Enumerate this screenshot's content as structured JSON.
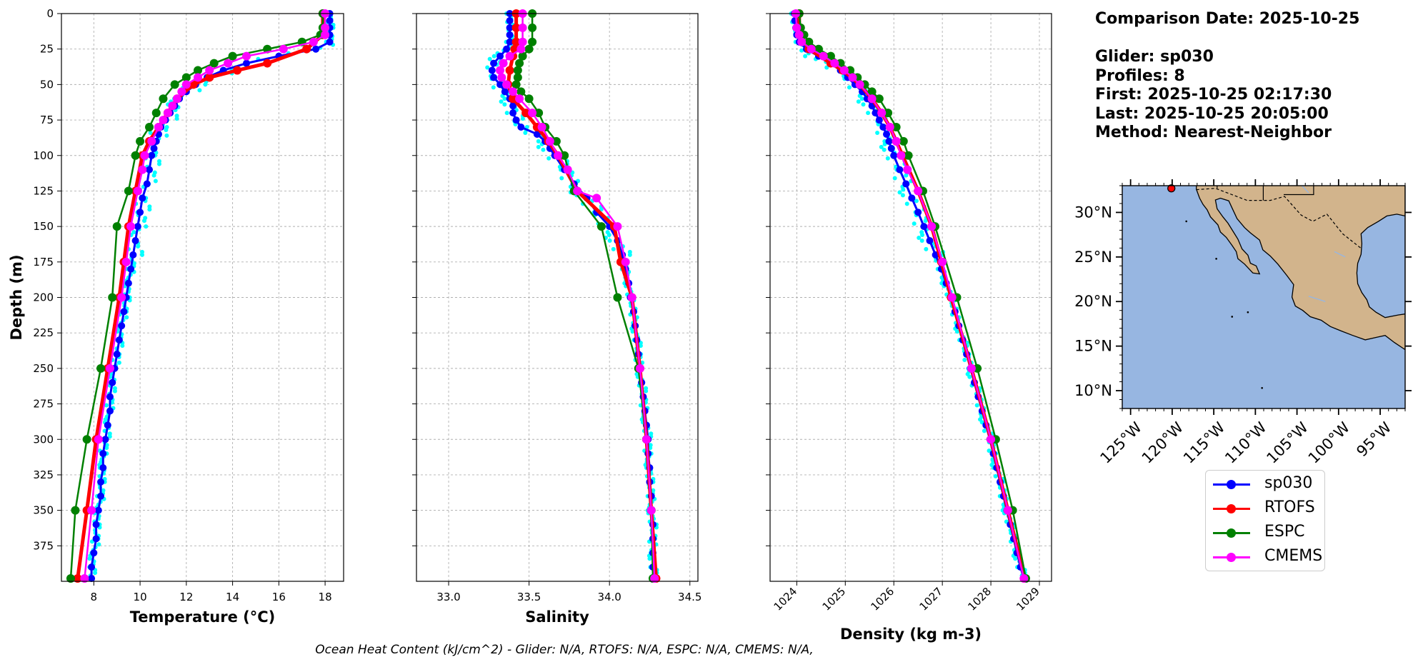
{
  "info": {
    "comparison_date": "Comparison Date: 2025-10-25",
    "glider": "Glider: sp030",
    "profiles": "Profiles: 8",
    "first": "First: 2025-10-25 02:17:30",
    "last": "Last: 2025-10-25 20:05:00",
    "method": "Method: Nearest-Neighbor"
  },
  "footer": "Ocean Heat Content (kJ/cm^2) - Glider: N/A,  RTOFS: N/A,  ESPC: N/A,  CMEMS: N/A,",
  "legend": [
    {
      "label": "sp030",
      "color": "#0000ff"
    },
    {
      "label": "RTOFS",
      "color": "#ff0000"
    },
    {
      "label": "ESPC",
      "color": "#008000"
    },
    {
      "label": "CMEMS",
      "color": "#ff00ff"
    }
  ],
  "colors": {
    "sp030": "#0000ff",
    "RTOFS": "#ff0000",
    "ESPC": "#008000",
    "CMEMS": "#ff00ff",
    "glider_raw": "#00ffff",
    "ocean": "#97b6e1",
    "land": "#d2b48c"
  },
  "map": {
    "lat_ticks": [
      "30°N",
      "25°N",
      "20°N",
      "15°N",
      "10°N"
    ],
    "lat_values": [
      30,
      25,
      20,
      15,
      10
    ],
    "lon_ticks": [
      "125°W",
      "120°W",
      "115°W",
      "110°W",
      "105°W",
      "100°W",
      "95°W"
    ],
    "lon_values": [
      -125,
      -120,
      -115,
      -110,
      -105,
      -100,
      -95
    ],
    "extent": {
      "lon": [
        -126,
        -92
      ],
      "lat": [
        8,
        33
      ]
    },
    "glider_position": {
      "lon": -120.1,
      "lat": 32.7
    }
  },
  "chart_data": [
    {
      "type": "line",
      "title": "",
      "xlabel": "Temperature (°C)",
      "ylabel": "Depth (m)",
      "xlim": [
        6.6,
        18.8
      ],
      "ylim": [
        400,
        0
      ],
      "xticks": [
        8,
        10,
        12,
        14,
        16,
        18
      ],
      "yticks": [
        0,
        25,
        50,
        75,
        100,
        125,
        150,
        175,
        200,
        225,
        250,
        275,
        300,
        325,
        350,
        375
      ],
      "grid": true,
      "series": [
        {
          "name": "sp030",
          "depth": [
            0,
            5,
            10,
            15,
            20,
            25,
            30,
            35,
            40,
            45,
            50,
            55,
            60,
            65,
            70,
            75,
            80,
            85,
            90,
            95,
            100,
            110,
            120,
            130,
            140,
            150,
            160,
            170,
            180,
            190,
            200,
            210,
            220,
            230,
            240,
            250,
            260,
            270,
            280,
            290,
            300,
            310,
            320,
            330,
            340,
            350,
            360,
            370,
            380,
            390,
            398
          ],
          "values": [
            18.2,
            18.2,
            18.2,
            18.2,
            18.2,
            17.6,
            16.0,
            14.6,
            13.6,
            12.9,
            12.4,
            12.0,
            11.7,
            11.5,
            11.3,
            11.1,
            10.9,
            10.8,
            10.7,
            10.6,
            10.5,
            10.4,
            10.3,
            10.1,
            10.0,
            9.9,
            9.8,
            9.7,
            9.6,
            9.5,
            9.4,
            9.3,
            9.2,
            9.1,
            9.0,
            8.9,
            8.8,
            8.7,
            8.7,
            8.6,
            8.5,
            8.4,
            8.4,
            8.3,
            8.3,
            8.2,
            8.1,
            8.1,
            8.0,
            7.9,
            7.9
          ]
        },
        {
          "name": "RTOFS",
          "depth": [
            0,
            15,
            25,
            35,
            40,
            45,
            50,
            60,
            70,
            80,
            90,
            100,
            125,
            150,
            175,
            200,
            250,
            300,
            350,
            398
          ],
          "values": [
            17.9,
            17.9,
            17.2,
            15.5,
            14.2,
            13.0,
            12.3,
            11.6,
            11.2,
            10.8,
            10.4,
            10.1,
            9.8,
            9.5,
            9.3,
            9.1,
            8.6,
            8.1,
            7.7,
            7.3
          ]
        },
        {
          "name": "ESPC",
          "depth": [
            0,
            10,
            15,
            20,
            25,
            30,
            35,
            40,
            45,
            50,
            60,
            70,
            80,
            90,
            100,
            125,
            150,
            200,
            250,
            300,
            350,
            398
          ],
          "values": [
            17.9,
            17.9,
            17.8,
            17.0,
            15.5,
            14.0,
            13.2,
            12.5,
            12.0,
            11.5,
            11.0,
            10.7,
            10.4,
            10.0,
            9.8,
            9.5,
            9.0,
            8.8,
            8.3,
            7.7,
            7.2,
            7.0
          ]
        },
        {
          "name": "CMEMS",
          "depth": [
            0,
            10,
            15,
            20,
            25,
            30,
            35,
            40,
            45,
            50,
            55,
            60,
            65,
            70,
            75,
            80,
            90,
            100,
            110,
            125,
            150,
            175,
            200,
            250,
            300,
            350,
            398
          ],
          "values": [
            18.0,
            18.0,
            18.0,
            17.5,
            16.2,
            14.6,
            13.8,
            13.0,
            12.5,
            12.0,
            11.8,
            11.6,
            11.4,
            11.2,
            11.0,
            10.8,
            10.5,
            10.2,
            10.1,
            9.9,
            9.6,
            9.4,
            9.2,
            8.7,
            8.2,
            7.9,
            7.6
          ]
        }
      ]
    },
    {
      "type": "line",
      "title": "",
      "xlabel": "Salinity",
      "ylabel": "",
      "xlim": [
        32.8,
        34.55
      ],
      "ylim": [
        400,
        0
      ],
      "xticks": [
        33.0,
        33.5,
        34.0,
        34.5
      ],
      "grid": true,
      "series": [
        {
          "name": "sp030",
          "depth": [
            0,
            5,
            10,
            15,
            20,
            25,
            30,
            35,
            40,
            45,
            50,
            55,
            60,
            65,
            70,
            75,
            80,
            85,
            90,
            95,
            100,
            110,
            120,
            130,
            140,
            150,
            160,
            170,
            180,
            190,
            200,
            210,
            220,
            230,
            240,
            250,
            260,
            270,
            280,
            290,
            300,
            310,
            320,
            330,
            340,
            350,
            360,
            370,
            380,
            390,
            398
          ],
          "values": [
            33.38,
            33.38,
            33.38,
            33.38,
            33.38,
            33.36,
            33.32,
            33.28,
            33.27,
            33.28,
            33.32,
            33.35,
            33.38,
            33.4,
            33.4,
            33.42,
            33.45,
            33.55,
            33.6,
            33.63,
            33.66,
            33.72,
            33.78,
            33.86,
            33.92,
            34.0,
            34.05,
            34.08,
            34.1,
            34.12,
            34.13,
            34.15,
            34.16,
            34.17,
            34.18,
            34.19,
            34.2,
            34.21,
            34.22,
            34.23,
            34.24,
            34.24,
            34.25,
            34.25,
            34.26,
            34.26,
            34.27,
            34.27,
            34.27,
            34.27,
            34.28
          ]
        },
        {
          "name": "RTOFS",
          "depth": [
            0,
            10,
            20,
            25,
            30,
            40,
            50,
            60,
            70,
            80,
            90,
            100,
            125,
            150,
            175,
            200,
            250,
            300,
            350,
            398
          ],
          "values": [
            33.42,
            33.42,
            33.42,
            33.41,
            33.4,
            33.38,
            33.37,
            33.4,
            33.48,
            33.55,
            33.62,
            33.68,
            33.8,
            34.03,
            34.07,
            34.14,
            34.19,
            34.23,
            34.26,
            34.29
          ]
        },
        {
          "name": "ESPC",
          "depth": [
            0,
            10,
            20,
            25,
            30,
            35,
            40,
            45,
            50,
            55,
            60,
            70,
            80,
            90,
            100,
            125,
            150,
            200,
            250,
            300,
            350,
            398
          ],
          "values": [
            33.52,
            33.52,
            33.52,
            33.5,
            33.46,
            33.44,
            33.43,
            33.43,
            33.42,
            33.45,
            33.5,
            33.56,
            33.6,
            33.67,
            33.72,
            33.78,
            33.95,
            34.05,
            34.18,
            34.23,
            34.26,
            34.27
          ]
        },
        {
          "name": "CMEMS",
          "depth": [
            0,
            10,
            20,
            25,
            30,
            35,
            40,
            45,
            50,
            55,
            60,
            70,
            80,
            90,
            100,
            110,
            125,
            130,
            150,
            175,
            200,
            250,
            300,
            350,
            398
          ],
          "values": [
            33.46,
            33.46,
            33.46,
            33.45,
            33.38,
            33.34,
            33.32,
            33.33,
            33.36,
            33.4,
            33.44,
            33.52,
            33.58,
            33.63,
            33.68,
            33.74,
            33.8,
            33.92,
            34.05,
            34.1,
            34.14,
            34.19,
            34.23,
            34.26,
            34.28
          ]
        }
      ]
    },
    {
      "type": "line",
      "title": "",
      "xlabel": "Density (kg m-3)",
      "ylabel": "",
      "xlim": [
        1023.45,
        1029.25
      ],
      "ylim": [
        400,
        0
      ],
      "xticks": [
        1024,
        1025,
        1026,
        1027,
        1028,
        1029
      ],
      "grid": true,
      "series": [
        {
          "name": "sp030",
          "depth": [
            0,
            5,
            10,
            15,
            20,
            25,
            30,
            35,
            40,
            45,
            50,
            55,
            60,
            65,
            70,
            75,
            80,
            85,
            90,
            95,
            100,
            110,
            120,
            130,
            140,
            150,
            160,
            170,
            180,
            190,
            200,
            210,
            220,
            230,
            240,
            250,
            260,
            270,
            280,
            290,
            300,
            310,
            320,
            330,
            340,
            350,
            360,
            370,
            380,
            390,
            398
          ],
          "values": [
            1023.95,
            1023.96,
            1023.98,
            1024.0,
            1024.05,
            1024.2,
            1024.45,
            1024.7,
            1024.9,
            1025.05,
            1025.2,
            1025.35,
            1025.45,
            1025.55,
            1025.62,
            1025.7,
            1025.78,
            1025.85,
            1025.9,
            1025.95,
            1026.0,
            1026.12,
            1026.25,
            1026.37,
            1026.5,
            1026.62,
            1026.74,
            1026.86,
            1026.98,
            1027.08,
            1027.18,
            1027.26,
            1027.34,
            1027.42,
            1027.5,
            1027.58,
            1027.66,
            1027.74,
            1027.82,
            1027.9,
            1027.98,
            1028.05,
            1028.12,
            1028.19,
            1028.26,
            1028.33,
            1028.4,
            1028.47,
            1028.54,
            1028.61,
            1028.68
          ]
        },
        {
          "name": "RTOFS",
          "depth": [
            0,
            15,
            25,
            35,
            40,
            50,
            60,
            70,
            80,
            90,
            100,
            125,
            150,
            175,
            200,
            250,
            300,
            350,
            398
          ],
          "values": [
            1024.05,
            1024.05,
            1024.25,
            1024.7,
            1024.95,
            1025.3,
            1025.55,
            1025.75,
            1025.92,
            1026.05,
            1026.18,
            1026.5,
            1026.78,
            1026.98,
            1027.18,
            1027.6,
            1028.0,
            1028.35,
            1028.7
          ]
        },
        {
          "name": "ESPC",
          "depth": [
            0,
            10,
            15,
            20,
            25,
            30,
            35,
            40,
            45,
            50,
            55,
            60,
            70,
            80,
            90,
            100,
            125,
            150,
            200,
            250,
            300,
            350,
            398
          ],
          "values": [
            1024.05,
            1024.08,
            1024.15,
            1024.25,
            1024.45,
            1024.7,
            1024.9,
            1025.1,
            1025.25,
            1025.4,
            1025.55,
            1025.7,
            1025.88,
            1026.05,
            1026.2,
            1026.3,
            1026.6,
            1026.85,
            1027.3,
            1027.72,
            1028.1,
            1028.45,
            1028.72
          ]
        },
        {
          "name": "CMEMS",
          "depth": [
            0,
            10,
            15,
            20,
            25,
            30,
            35,
            40,
            45,
            50,
            60,
            70,
            80,
            90,
            100,
            110,
            125,
            150,
            175,
            200,
            250,
            300,
            350,
            398
          ],
          "values": [
            1023.98,
            1024.0,
            1024.05,
            1024.1,
            1024.3,
            1024.55,
            1024.78,
            1024.98,
            1025.15,
            1025.3,
            1025.55,
            1025.75,
            1025.92,
            1026.05,
            1026.15,
            1026.28,
            1026.5,
            1026.78,
            1027.0,
            1027.2,
            1027.6,
            1028.0,
            1028.35,
            1028.68
          ]
        }
      ]
    }
  ]
}
